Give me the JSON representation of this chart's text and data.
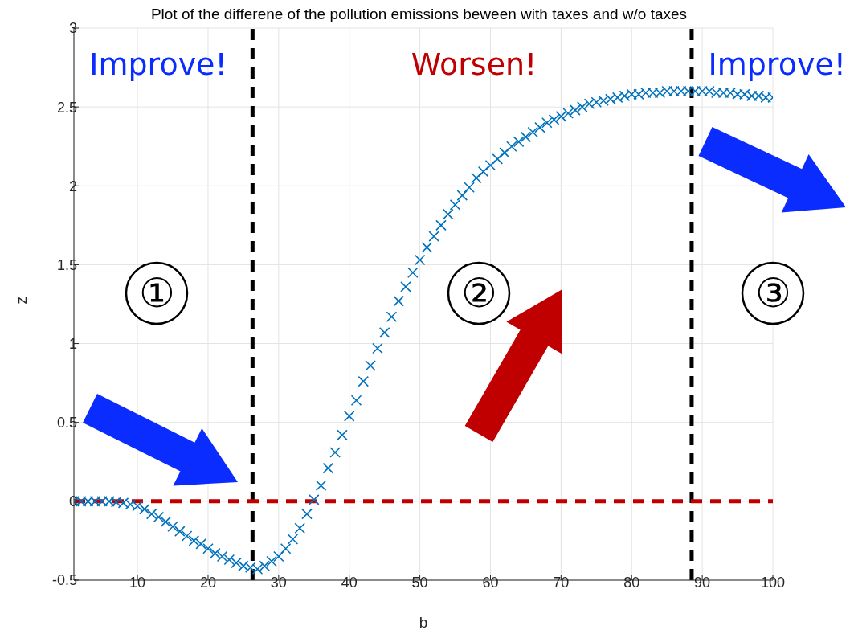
{
  "chart_data": {
    "type": "scatter",
    "title": "Plot of the differene of the pollution emissions beween with taxes and w/o taxes",
    "xlabel": "b",
    "ylabel": "z",
    "x": [
      1,
      2,
      3,
      4,
      5,
      6,
      7,
      8,
      9,
      10,
      11,
      12,
      13,
      14,
      15,
      16,
      17,
      18,
      19,
      20,
      21,
      22,
      23,
      24,
      25,
      26,
      27,
      28,
      29,
      30,
      31,
      32,
      33,
      34,
      35,
      36,
      37,
      38,
      39,
      40,
      41,
      42,
      43,
      44,
      45,
      46,
      47,
      48,
      49,
      50,
      51,
      52,
      53,
      54,
      55,
      56,
      57,
      58,
      59,
      60,
      61,
      62,
      63,
      64,
      65,
      66,
      67,
      68,
      69,
      70,
      71,
      72,
      73,
      74,
      75,
      76,
      77,
      78,
      79,
      80,
      81,
      82,
      83,
      84,
      85,
      86,
      87,
      88,
      89,
      90,
      91,
      92,
      93,
      94,
      95,
      96,
      97,
      98,
      99,
      100
    ],
    "series": [
      {
        "color": "#0072bd",
        "values": [
          0,
          0,
          0,
          0,
          0,
          0,
          -0.005,
          -0.01,
          -0.02,
          -0.03,
          -0.05,
          -0.08,
          -0.1,
          -0.13,
          -0.16,
          -0.19,
          -0.22,
          -0.25,
          -0.27,
          -0.3,
          -0.33,
          -0.35,
          -0.37,
          -0.39,
          -0.41,
          -0.42,
          -0.43,
          -0.41,
          -0.38,
          -0.35,
          -0.3,
          -0.24,
          -0.17,
          -0.08,
          0.01,
          0.1,
          0.21,
          0.31,
          0.42,
          0.54,
          0.64,
          0.76,
          0.86,
          0.97,
          1.07,
          1.17,
          1.27,
          1.36,
          1.45,
          1.53,
          1.61,
          1.68,
          1.75,
          1.82,
          1.88,
          1.94,
          1.99,
          2.05,
          2.09,
          2.13,
          2.17,
          2.21,
          2.25,
          2.28,
          2.31,
          2.34,
          2.37,
          2.4,
          2.42,
          2.44,
          2.46,
          2.48,
          2.5,
          2.52,
          2.53,
          2.54,
          2.55,
          2.56,
          2.57,
          2.58,
          2.58,
          2.59,
          2.59,
          2.59,
          2.6,
          2.6,
          2.6,
          2.6,
          2.6,
          2.6,
          2.6,
          2.59,
          2.59,
          2.59,
          2.58,
          2.58,
          2.57,
          2.57,
          2.56,
          2.56
        ]
      }
    ],
    "xlim": [
      1,
      100
    ],
    "xticks": [
      10,
      20,
      30,
      40,
      50,
      60,
      70,
      80,
      90,
      100
    ],
    "ylim": [
      -0.5,
      3
    ],
    "yticks": [
      -0.5,
      0,
      0.5,
      1,
      1.5,
      2,
      2.5,
      3
    ],
    "grid": true,
    "marker": "cross",
    "ref_lines": [
      {
        "axis": "x",
        "value": 26.3,
        "color": "#000000",
        "line_style": "dashed"
      },
      {
        "axis": "x",
        "value": 88.5,
        "color": "#000000",
        "line_style": "dashed"
      },
      {
        "axis": "y",
        "value": 0,
        "color": "#c00000",
        "line_style": "dashed"
      }
    ],
    "annotations": [
      "Improve!",
      "Worsen!",
      "Improve!",
      "①",
      "②",
      "③"
    ]
  }
}
